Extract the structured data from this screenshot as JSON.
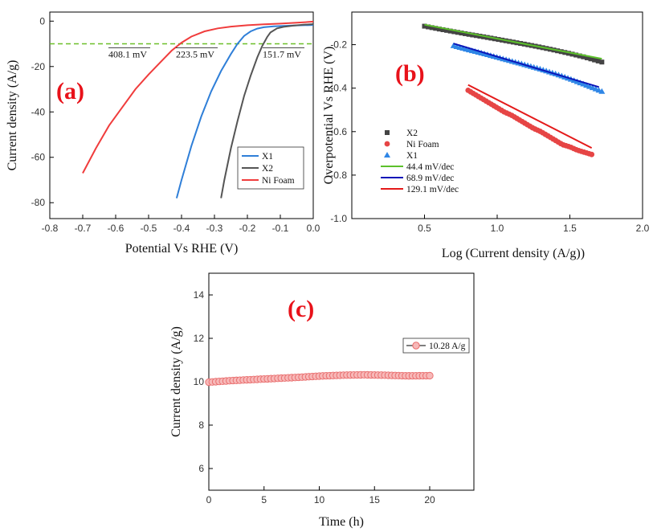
{
  "chart_data": [
    {
      "panel": "a",
      "type": "line",
      "panel_label": "(a)",
      "xlabel": "Potential Vs RHE (V)",
      "ylabel": "Current density (A/g)",
      "xlim": [
        -0.8,
        0.0
      ],
      "ylim": [
        -87,
        4
      ],
      "xticks": [
        "-0.8",
        "-0.7",
        "-0.6",
        "-0.5",
        "-0.4",
        "-0.3",
        "-0.2",
        "-0.1",
        "0.0"
      ],
      "yticks": [
        "0",
        "-20",
        "-40",
        "-60",
        "-80"
      ],
      "reference_line": {
        "y": -10,
        "color": "#6cbf2a",
        "style": "dashed"
      },
      "annotations": [
        "408.1 mV",
        "223.5 mV",
        "151.7 mV"
      ],
      "legend_position": "lower-right",
      "series": [
        {
          "name": "X1",
          "color": "#2f7fd8",
          "x": [
            -0.415,
            -0.4,
            -0.37,
            -0.34,
            -0.31,
            -0.28,
            -0.25,
            -0.23,
            -0.21,
            -0.19,
            -0.17,
            -0.15,
            -0.12,
            -0.09,
            -0.06,
            -0.03,
            0.0
          ],
          "y": [
            -78,
            -70,
            -55,
            -42,
            -31,
            -22,
            -14.5,
            -10,
            -6.5,
            -4.5,
            -3.3,
            -2.7,
            -2.3,
            -2.1,
            -1.9,
            -1.8,
            -1.7
          ]
        },
        {
          "name": "X2",
          "color": "#555555",
          "x": [
            -0.28,
            -0.27,
            -0.25,
            -0.23,
            -0.21,
            -0.19,
            -0.17,
            -0.155,
            -0.14,
            -0.13,
            -0.11,
            -0.09,
            -0.06,
            -0.03,
            0.0
          ],
          "y": [
            -78,
            -70,
            -56,
            -44,
            -33,
            -24,
            -16,
            -11,
            -7,
            -5,
            -3.2,
            -2.5,
            -2.0,
            -1.6,
            -1.3
          ]
        },
        {
          "name": "Ni Foam",
          "color": "#f03c3c",
          "x": [
            -0.7,
            -0.66,
            -0.62,
            -0.58,
            -0.54,
            -0.5,
            -0.46,
            -0.43,
            -0.4,
            -0.37,
            -0.33,
            -0.29,
            -0.25,
            -0.2,
            -0.15,
            -0.1,
            -0.05,
            0.0
          ],
          "y": [
            -67,
            -56,
            -46,
            -38,
            -30,
            -23.5,
            -17.5,
            -13,
            -9.5,
            -6.8,
            -4.5,
            -3.2,
            -2.4,
            -1.8,
            -1.4,
            -1.1,
            -0.7,
            -0.2
          ]
        }
      ]
    },
    {
      "panel": "b",
      "type": "scatter",
      "panel_label": "(b)",
      "xlabel": "Log (Current density (A/g))",
      "ylabel": "Overpotential Vs RHE (V)",
      "xlim": [
        0.0,
        2.0
      ],
      "ylim": [
        -1.0,
        -0.05
      ],
      "xticks": [
        "0.5",
        "1.0",
        "1.5",
        "2.0"
      ],
      "yticks": [
        "-0.2",
        "-0.4",
        "-0.6",
        "-0.8",
        "-1.0"
      ],
      "legend_position": "lower-left",
      "series": [
        {
          "name": "X2",
          "marker": "square",
          "color": "#444444",
          "x": [
            0.5,
            0.6,
            0.7,
            0.8,
            0.9,
            1.0,
            1.1,
            1.2,
            1.3,
            1.4,
            1.5,
            1.6,
            1.72
          ],
          "y": [
            -0.115,
            -0.128,
            -0.14,
            -0.152,
            -0.163,
            -0.175,
            -0.187,
            -0.199,
            -0.212,
            -0.226,
            -0.241,
            -0.257,
            -0.28
          ]
        },
        {
          "name": "Ni Foam",
          "marker": "circle",
          "color": "#e64545",
          "x": [
            0.8,
            0.85,
            0.9,
            0.95,
            1.0,
            1.05,
            1.1,
            1.15,
            1.2,
            1.25,
            1.3,
            1.35,
            1.4,
            1.45,
            1.5,
            1.55,
            1.6,
            1.65
          ],
          "y": [
            -0.41,
            -0.43,
            -0.45,
            -0.47,
            -0.49,
            -0.51,
            -0.525,
            -0.545,
            -0.565,
            -0.585,
            -0.6,
            -0.62,
            -0.64,
            -0.66,
            -0.67,
            -0.685,
            -0.695,
            -0.705
          ]
        },
        {
          "name": "X1",
          "marker": "triangle",
          "color": "#2f86e6",
          "x": [
            0.7,
            0.8,
            0.9,
            1.0,
            1.1,
            1.2,
            1.3,
            1.4,
            1.5,
            1.6,
            1.72
          ],
          "y": [
            -0.205,
            -0.223,
            -0.24,
            -0.258,
            -0.276,
            -0.294,
            -0.313,
            -0.334,
            -0.357,
            -0.383,
            -0.415
          ]
        },
        {
          "name": "44.4 mV/dec",
          "line": true,
          "color": "#5cc02b",
          "x": [
            0.5,
            1.72
          ],
          "y": [
            -0.108,
            -0.265
          ]
        },
        {
          "name": "68.9 mV/dec",
          "line": true,
          "color": "#0a14b8",
          "x": [
            0.7,
            1.7
          ],
          "y": [
            -0.195,
            -0.395
          ]
        },
        {
          "name": "129.1 mV/dec",
          "line": true,
          "color": "#e41a1a",
          "x": [
            0.8,
            1.65
          ],
          "y": [
            -0.385,
            -0.675
          ]
        }
      ]
    },
    {
      "panel": "c",
      "type": "scatter",
      "panel_label": "(c)",
      "xlabel": "Time (h)",
      "ylabel": "Current density (A/g)",
      "xlim": [
        0,
        24
      ],
      "ylim": [
        5,
        15
      ],
      "xticks": [
        "0",
        "5",
        "10",
        "15",
        "20"
      ],
      "yticks": [
        "6",
        "8",
        "10",
        "12",
        "14"
      ],
      "legend_position": "top-right",
      "series": [
        {
          "name": "10.28 A/g",
          "marker": "circle-open",
          "color": "#333333",
          "fill": "#f7b8b8",
          "x": [
            0,
            2,
            4,
            6,
            8,
            10,
            12,
            14,
            16,
            18,
            20
          ],
          "y": [
            9.98,
            10.05,
            10.1,
            10.15,
            10.2,
            10.26,
            10.3,
            10.32,
            10.3,
            10.27,
            10.28
          ]
        }
      ]
    }
  ]
}
